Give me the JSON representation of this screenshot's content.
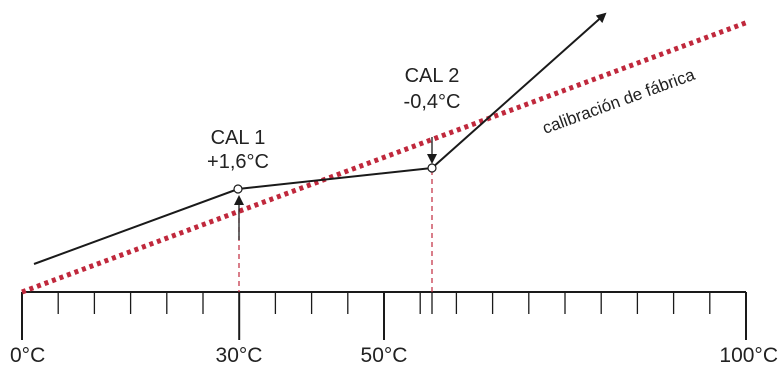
{
  "colors": {
    "axis": "#1a1a1a",
    "factory_line": "#c0283c",
    "guide": "#c0283c",
    "curve": "#1a1a1a"
  },
  "labels": {
    "cal1_title": "CAL 1",
    "cal1_offset": "+1,6°C",
    "cal2_title": "CAL 2",
    "cal2_offset": "-0,4°C",
    "factory": "calibración de fábrica"
  },
  "scale": {
    "tick_labels": [
      "0°C",
      "30°C",
      "50°C",
      "100°C"
    ],
    "major_values": [
      0,
      30,
      50,
      100
    ],
    "tick_count": 20
  }
}
